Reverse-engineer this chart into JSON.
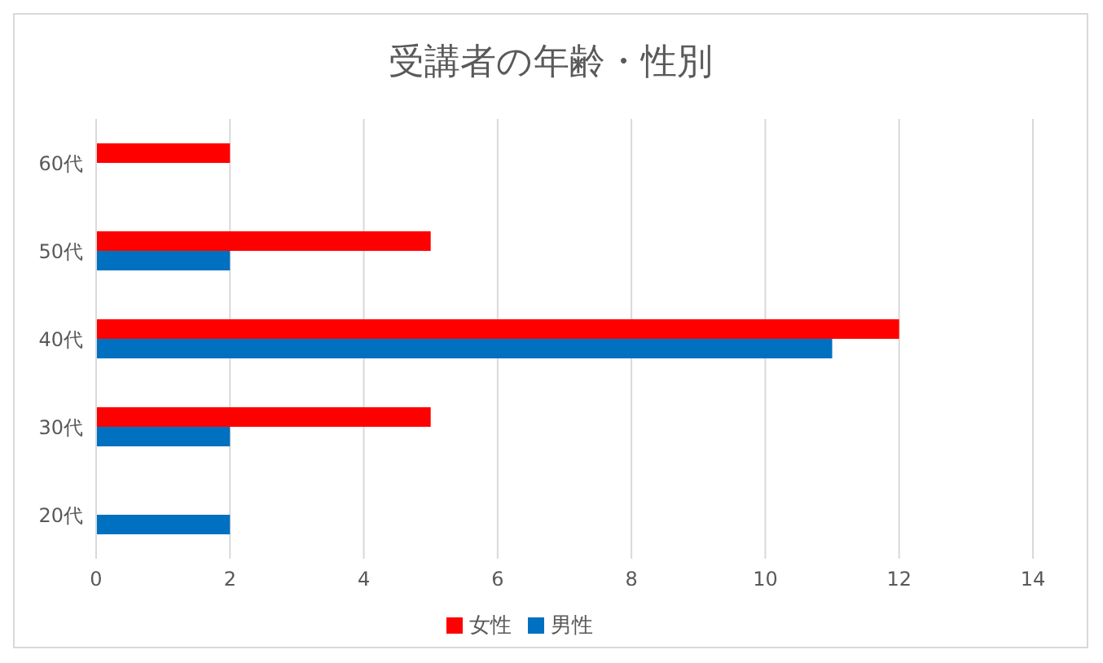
{
  "chart_data": {
    "type": "bar",
    "orientation": "horizontal",
    "title": "受講者の年齢・性別",
    "categories": [
      "60代",
      "50代",
      "40代",
      "30代",
      "20代"
    ],
    "series": [
      {
        "name": "女性",
        "color": "#ff0000",
        "values": [
          2,
          5,
          12,
          5,
          null
        ]
      },
      {
        "name": "男性",
        "color": "#0070c0",
        "values": [
          null,
          2,
          11,
          2,
          2
        ]
      }
    ],
    "xlim": [
      0,
      14
    ],
    "xticks": [
      0,
      2,
      4,
      6,
      8,
      10,
      12,
      14
    ],
    "grid": "x",
    "legend": "bottom"
  }
}
